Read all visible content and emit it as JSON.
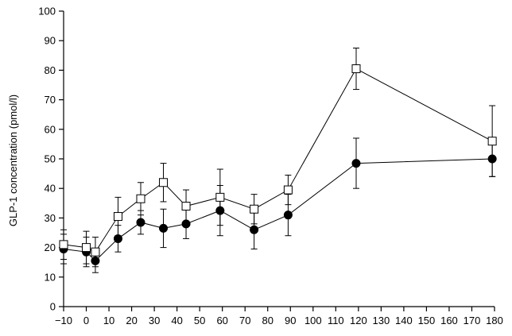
{
  "chart_data": {
    "type": "line",
    "title": "",
    "xlabel": "",
    "ylabel": "GLP-1 concentration (pmol/l)",
    "xlim": [
      -10,
      180
    ],
    "ylim": [
      0,
      100
    ],
    "xticks": [
      -10,
      0,
      10,
      20,
      30,
      40,
      50,
      60,
      70,
      80,
      90,
      100,
      110,
      120,
      130,
      140,
      150,
      160,
      170,
      180
    ],
    "yticks": [
      0,
      10,
      20,
      30,
      40,
      50,
      60,
      70,
      80,
      90,
      100
    ],
    "x_tick_labels": [
      "−10",
      "0",
      "10",
      "20",
      "30",
      "40",
      "50",
      "60",
      "70",
      "80",
      "90",
      "100",
      "110",
      "120",
      "130",
      "140",
      "150",
      "160",
      "170",
      "180"
    ],
    "y_tick_labels": [
      "0",
      "10",
      "20",
      "30",
      "40",
      "50",
      "60",
      "70",
      "80",
      "90",
      "100"
    ],
    "grid": false,
    "series": [
      {
        "marker": "open-square",
        "x": [
          -10,
          0,
          4,
          14,
          24,
          34,
          44,
          59,
          74,
          89,
          119,
          179
        ],
        "y": [
          21,
          20,
          18.5,
          30.5,
          36.5,
          42,
          34,
          37,
          33,
          39.5,
          80.5,
          56
        ],
        "err": [
          5,
          5.5,
          5,
          6.5,
          5.5,
          6.5,
          5.5,
          9.5,
          5,
          5,
          7,
          12
        ]
      },
      {
        "marker": "filled-circle",
        "x": [
          -10,
          0,
          4,
          14,
          24,
          34,
          44,
          59,
          74,
          89,
          119,
          179
        ],
        "y": [
          19.5,
          18.5,
          15.5,
          23,
          28.5,
          26.5,
          28,
          32.5,
          26,
          31,
          48.5,
          50
        ],
        "err": [
          5,
          5,
          4,
          4.5,
          4,
          6.5,
          5,
          8.5,
          6.5,
          7,
          8.5,
          6
        ]
      }
    ]
  }
}
